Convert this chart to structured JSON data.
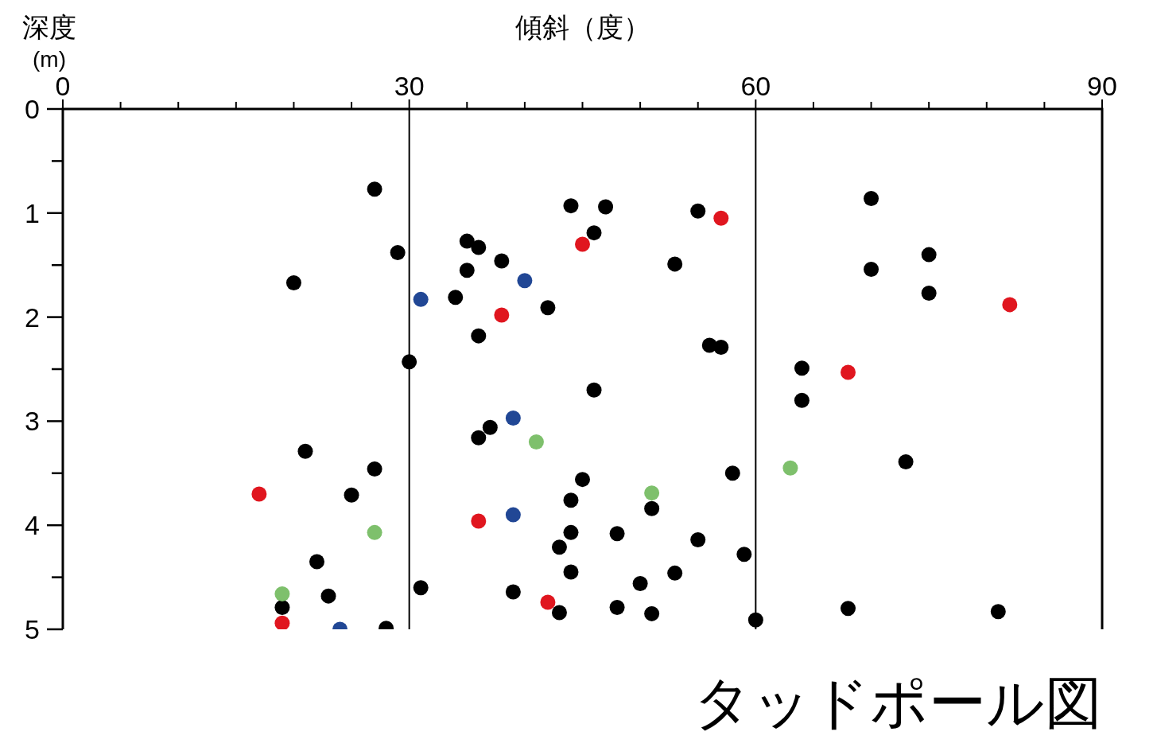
{
  "chart_data": {
    "type": "scatter",
    "title": "タッドポール図",
    "xlabel": "傾斜（度）",
    "ylabel": "深度\n(m)",
    "xlim": [
      0,
      90
    ],
    "ylim": [
      5,
      0
    ],
    "xticks": [
      0,
      {
        "value": 5,
        "label": null
      },
      {
        "value": 10,
        "label": null
      },
      {
        "value": 15,
        "label": null
      },
      {
        "value": 20,
        "label": null
      },
      {
        "value": 25,
        "label": null
      },
      30,
      {
        "value": 35,
        "label": null
      },
      {
        "value": 40,
        "label": null
      },
      {
        "value": 45,
        "label": null
      },
      {
        "value": 50,
        "label": null
      },
      {
        "value": 55,
        "label": null
      },
      60,
      {
        "value": 65,
        "label": null
      },
      {
        "value": 70,
        "label": null
      },
      {
        "value": 75,
        "label": null
      },
      {
        "value": 80,
        "label": null
      },
      {
        "value": 85,
        "label": null
      },
      90
    ],
    "yticks": [
      0,
      {
        "value": 0.5,
        "label": null
      },
      1,
      {
        "value": 1.5,
        "label": null
      },
      2,
      {
        "value": 2.5,
        "label": null
      },
      3,
      {
        "value": 3.5,
        "label": null
      },
      4,
      {
        "value": 4.5,
        "label": null
      },
      5
    ],
    "grid": "x",
    "marker": "circle",
    "series": [
      {
        "color": "#000000",
        "x": [
          27,
          29,
          20,
          44,
          47,
          46,
          35,
          36,
          38,
          35,
          34,
          42,
          36,
          55,
          53,
          56,
          57,
          30,
          70,
          75,
          70,
          75,
          64,
          64,
          73,
          68,
          81,
          46,
          37,
          36,
          58,
          45,
          44,
          51,
          44,
          48,
          43,
          55,
          59,
          44,
          50,
          53,
          31,
          39,
          43,
          48,
          51,
          60,
          21,
          27,
          25,
          22,
          23,
          19,
          28
        ],
        "values": [
          0.77,
          1.38,
          1.67,
          0.93,
          0.94,
          1.19,
          1.27,
          1.33,
          1.46,
          1.55,
          1.81,
          1.91,
          2.18,
          0.98,
          1.49,
          2.27,
          2.29,
          2.43,
          0.86,
          1.4,
          1.54,
          1.77,
          2.49,
          2.8,
          3.39,
          4.8,
          4.83,
          2.7,
          3.06,
          3.16,
          3.5,
          3.56,
          3.76,
          3.84,
          4.07,
          4.08,
          4.21,
          4.14,
          4.28,
          4.45,
          4.56,
          4.46,
          4.6,
          4.64,
          4.84,
          4.79,
          4.85,
          4.91,
          3.29,
          3.46,
          3.71,
          4.35,
          4.68,
          4.79,
          4.99
        ]
      },
      {
        "color": "#e0161f",
        "x": [
          57,
          45,
          38,
          82,
          68,
          17,
          36,
          42,
          19
        ],
        "values": [
          1.05,
          1.3,
          1.98,
          1.88,
          2.53,
          3.7,
          3.96,
          4.74,
          4.94
        ]
      },
      {
        "color": "#214795",
        "x": [
          31,
          40,
          39,
          39,
          24
        ],
        "values": [
          1.83,
          1.65,
          2.97,
          3.9,
          5.0
        ]
      },
      {
        "color": "#7ec06c",
        "x": [
          41,
          51,
          27,
          19,
          63
        ],
        "values": [
          3.2,
          3.69,
          4.07,
          4.66,
          3.45
        ]
      }
    ]
  }
}
